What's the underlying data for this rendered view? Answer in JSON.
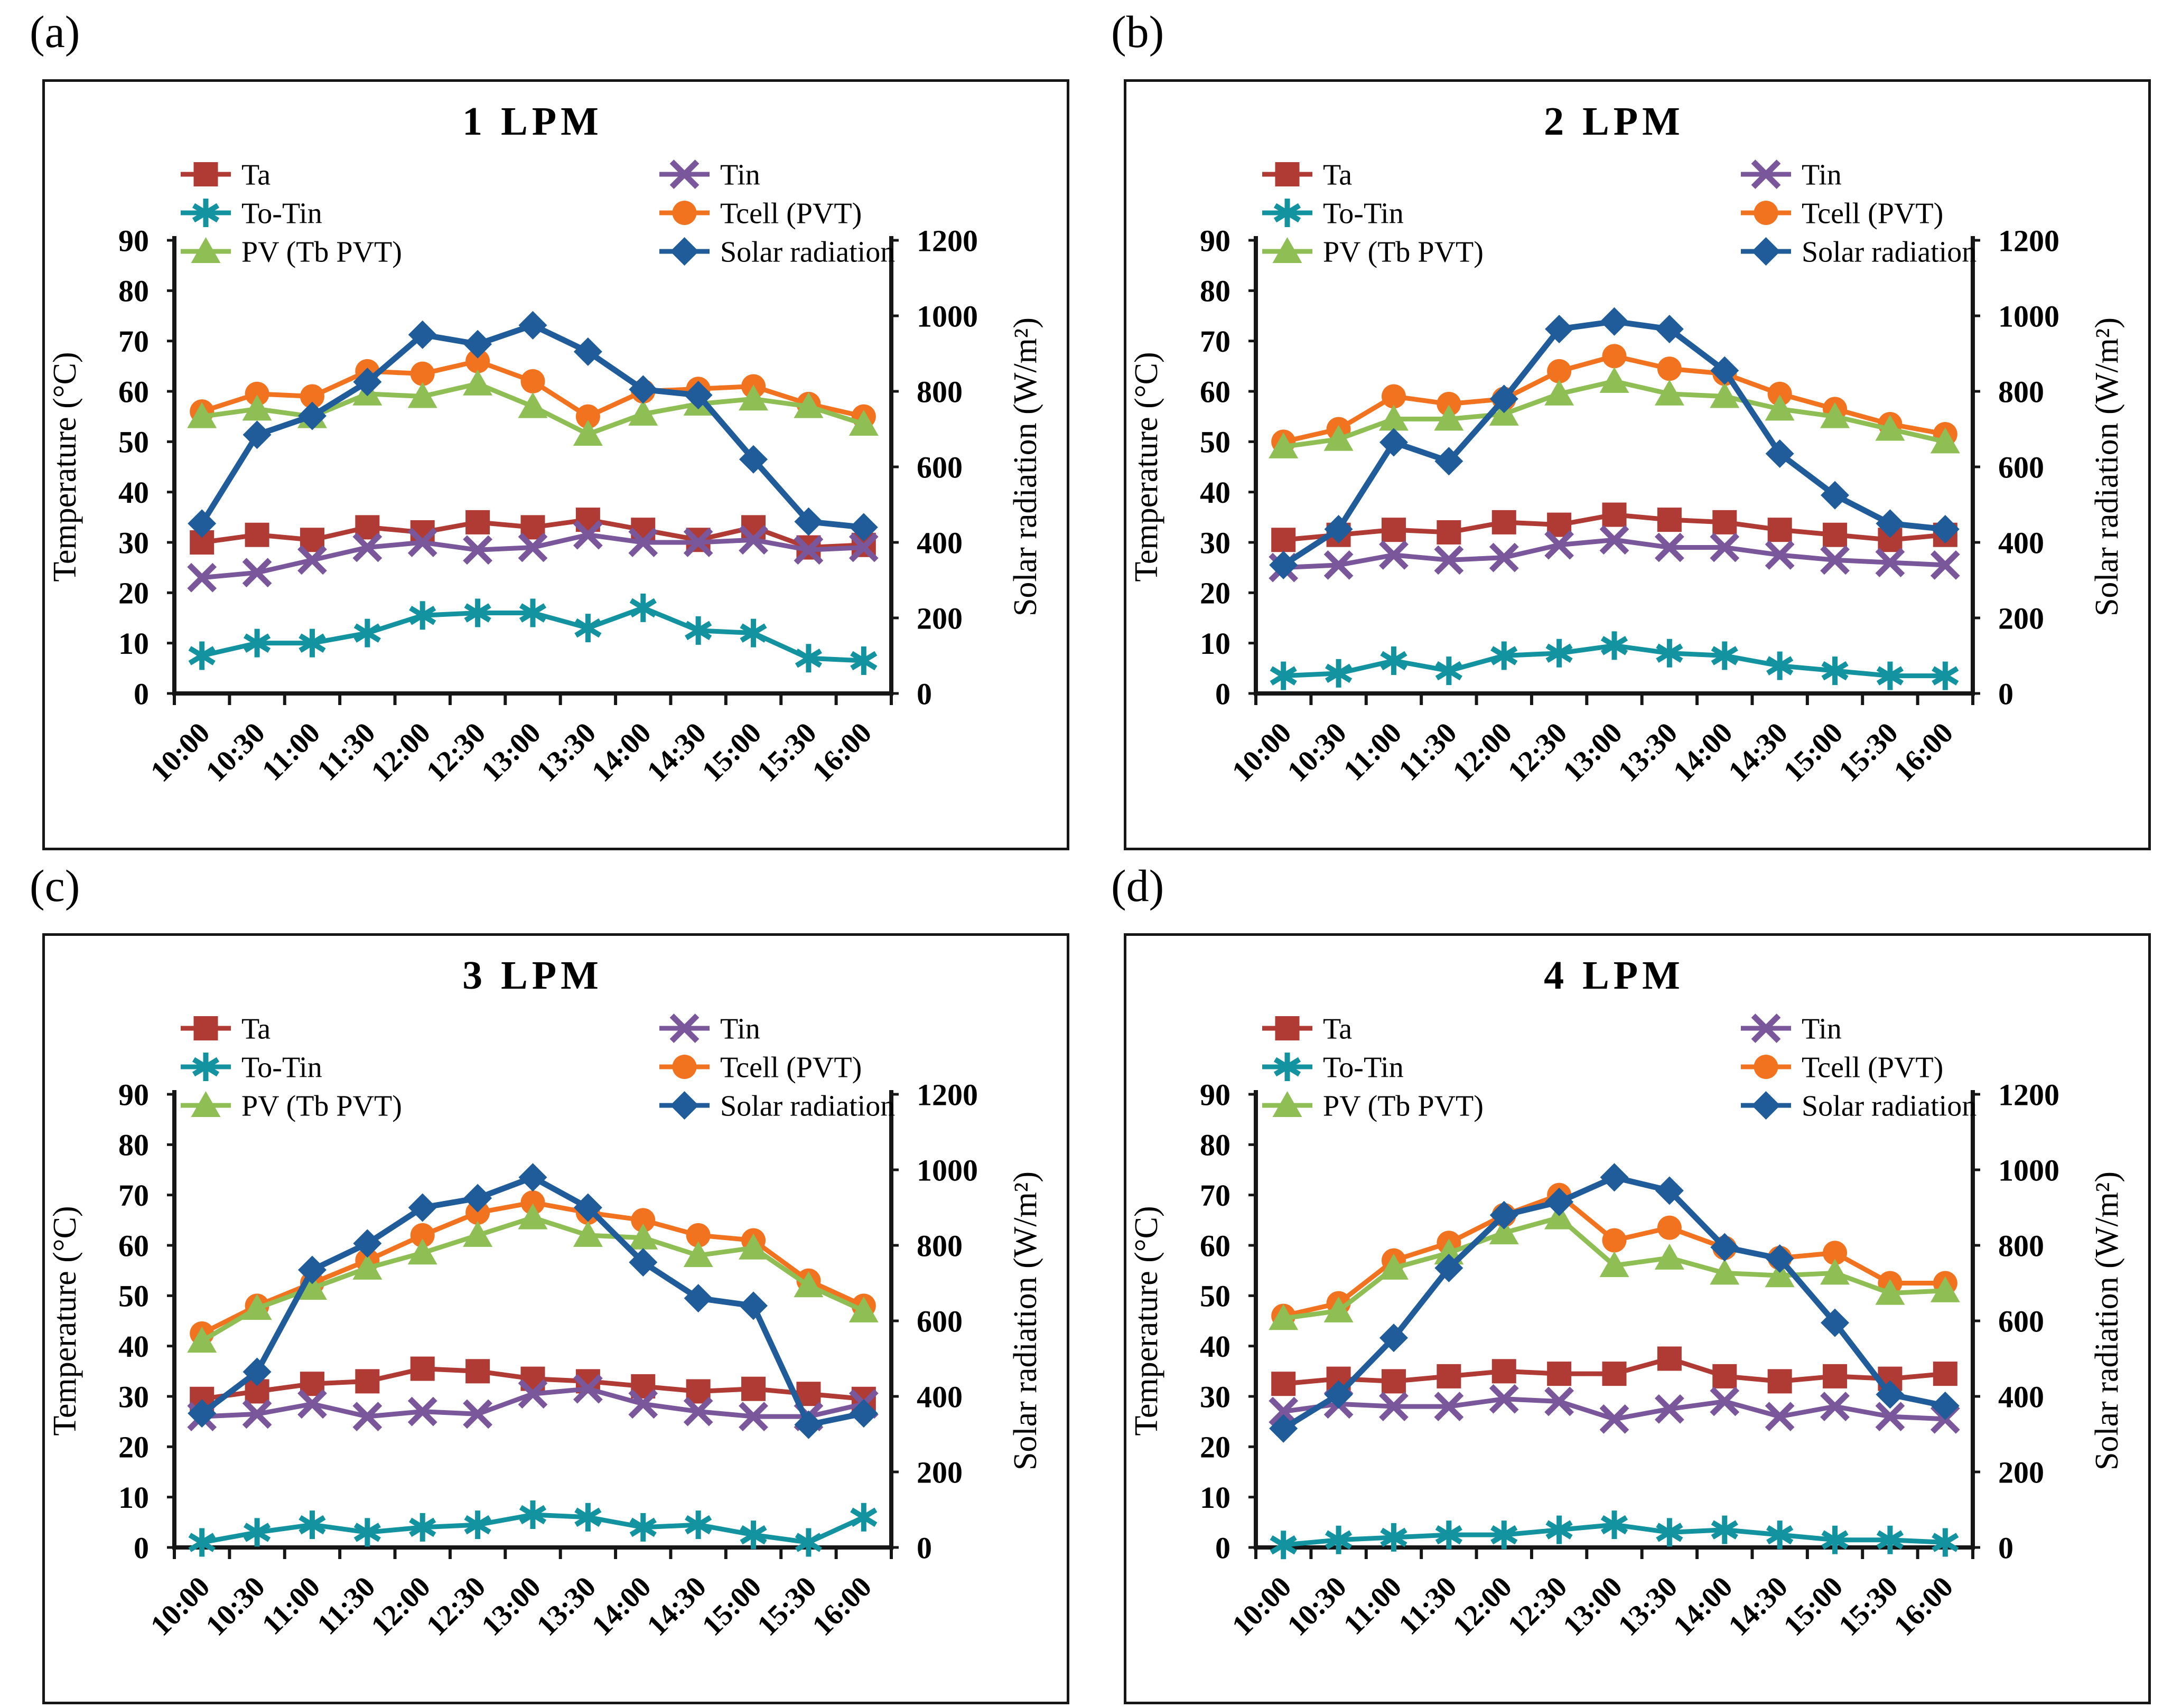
{
  "figure": {
    "background": "#ffffff",
    "text_color": "#000000",
    "box_border_color": "#161616"
  },
  "chart_data": [
    {
      "type": "line",
      "panel_label": "(a)",
      "title": "1 LPM",
      "categories": [
        "10:00",
        "10:30",
        "11:00",
        "11:30",
        "12:00",
        "12:30",
        "13:00",
        "13:30",
        "14:00",
        "14:30",
        "15:00",
        "15:30",
        "16:00"
      ],
      "left_axis": {
        "label": "Temperature (°C)",
        "min": 0,
        "max": 90,
        "step": 10
      },
      "right_axis": {
        "label": "Solar radiation (W/m²)",
        "min": 0,
        "max": 1200,
        "step": 200
      },
      "grid": false,
      "legend_rows": [
        [
          "Ta",
          "Tin"
        ],
        [
          "To-Tin",
          "Tcell (PVT)"
        ],
        [
          "PV (Tb PVT)",
          "Solar radiation"
        ]
      ],
      "series": [
        {
          "name": "Ta",
          "axis": "left",
          "marker": "square",
          "color": "#B03A34",
          "values": [
            30,
            31.5,
            30.5,
            33,
            32,
            34,
            33,
            34.5,
            32.5,
            30.5,
            33,
            29,
            29.5
          ]
        },
        {
          "name": "Tin",
          "axis": "left",
          "marker": "x",
          "color": "#7A569B",
          "values": [
            23,
            24,
            26.5,
            29,
            30,
            28.5,
            29,
            31.5,
            30,
            30,
            30.5,
            28.5,
            29
          ]
        },
        {
          "name": "To-Tin",
          "axis": "left",
          "marker": "asterisk",
          "color": "#13929F",
          "values": [
            7.5,
            10,
            10,
            12,
            15.5,
            16,
            16,
            13,
            17,
            12.5,
            12,
            7,
            6.5
          ]
        },
        {
          "name": "Tcell (PVT)",
          "axis": "left",
          "marker": "circle",
          "color": "#F1731F",
          "values": [
            56,
            59.5,
            59,
            64,
            63.5,
            66,
            62,
            55,
            60,
            60.5,
            61,
            57.5,
            55
          ]
        },
        {
          "name": "PV (Tb PVT)",
          "axis": "left",
          "marker": "triangle",
          "color": "#8FBE55",
          "values": [
            55,
            56.5,
            55,
            59.5,
            59,
            61.5,
            57,
            51.5,
            55.5,
            57.5,
            58.5,
            57,
            53.5
          ]
        },
        {
          "name": "Solar radiation",
          "axis": "right",
          "marker": "diamond",
          "color": "#1F5C99",
          "values": [
            450,
            685,
            735,
            825,
            950,
            925,
            975,
            905,
            805,
            790,
            620,
            455,
            440
          ]
        }
      ]
    },
    {
      "type": "line",
      "panel_label": "(b)",
      "title": "2 LPM",
      "categories": [
        "10:00",
        "10:30",
        "11:00",
        "11:30",
        "12:00",
        "12:30",
        "13:00",
        "13:30",
        "14:00",
        "14:30",
        "15:00",
        "15:30",
        "16:00"
      ],
      "left_axis": {
        "label": "Temperature (°C)",
        "min": 0,
        "max": 90,
        "step": 10
      },
      "right_axis": {
        "label": "Solar radiation (W/m²)",
        "min": 0,
        "max": 1200,
        "step": 200
      },
      "grid": false,
      "legend_rows": [
        [
          "Ta",
          "Tin"
        ],
        [
          "To-Tin",
          "Tcell (PVT)"
        ],
        [
          "PV (Tb PVT)",
          "Solar radiation"
        ]
      ],
      "series": [
        {
          "name": "Ta",
          "axis": "left",
          "marker": "square",
          "color": "#B03A34",
          "values": [
            30.5,
            31.5,
            32.5,
            32,
            34,
            33.5,
            35.5,
            34.5,
            34,
            32.5,
            31.5,
            30.5,
            31.5
          ]
        },
        {
          "name": "Tin",
          "axis": "left",
          "marker": "x",
          "color": "#7A569B",
          "values": [
            25,
            25.5,
            27.5,
            26.5,
            27,
            29.5,
            30.5,
            29,
            29,
            27.5,
            26.5,
            26,
            25.5
          ]
        },
        {
          "name": "To-Tin",
          "axis": "left",
          "marker": "asterisk",
          "color": "#13929F",
          "values": [
            3.5,
            4,
            6.5,
            4.5,
            7.5,
            8,
            9.5,
            8,
            7.5,
            5.5,
            4.5,
            3.5,
            3.5
          ]
        },
        {
          "name": "Tcell (PVT)",
          "axis": "left",
          "marker": "circle",
          "color": "#F1731F",
          "values": [
            50,
            52.5,
            59,
            57.5,
            58.5,
            64,
            67,
            64.5,
            63.5,
            59.5,
            56.5,
            53.5,
            51.5
          ]
        },
        {
          "name": "PV (Tb PVT)",
          "axis": "left",
          "marker": "triangle",
          "color": "#8FBE55",
          "values": [
            49,
            50.5,
            54.5,
            54.5,
            55.5,
            59.5,
            62,
            59.5,
            59,
            56.5,
            55,
            52.5,
            50
          ]
        },
        {
          "name": "Solar radiation",
          "axis": "right",
          "marker": "diamond",
          "color": "#1F5C99",
          "values": [
            340,
            435,
            665,
            615,
            780,
            965,
            985,
            965,
            855,
            635,
            525,
            450,
            435
          ]
        }
      ]
    },
    {
      "type": "line",
      "panel_label": "(c)",
      "title": "3 LPM",
      "categories": [
        "10:00",
        "10:30",
        "11:00",
        "11:30",
        "12:00",
        "12:30",
        "13:00",
        "13:30",
        "14:00",
        "14:30",
        "15:00",
        "15:30",
        "16:00"
      ],
      "left_axis": {
        "label": "Temperature (°C)",
        "min": 0,
        "max": 90,
        "step": 10
      },
      "right_axis": {
        "label": "Solar radiation (W/m²)",
        "min": 0,
        "max": 1200,
        "step": 200
      },
      "grid": false,
      "legend_rows": [
        [
          "Ta",
          "Tin"
        ],
        [
          "To-Tin",
          "Tcell (PVT)"
        ],
        [
          "PV (Tb PVT)",
          "Solar radiation"
        ]
      ],
      "series": [
        {
          "name": "Ta",
          "axis": "left",
          "marker": "square",
          "color": "#B03A34",
          "values": [
            29.5,
            31,
            32.5,
            33,
            35.5,
            35,
            33.5,
            33,
            32,
            31,
            31.5,
            30.5,
            29.5
          ]
        },
        {
          "name": "Tin",
          "axis": "left",
          "marker": "x",
          "color": "#7A569B",
          "values": [
            26,
            26.5,
            28.5,
            26,
            27,
            26.5,
            30.5,
            31.5,
            28.5,
            27,
            26,
            26,
            28.5
          ]
        },
        {
          "name": "To-Tin",
          "axis": "left",
          "marker": "asterisk",
          "color": "#13929F",
          "values": [
            1,
            3,
            4.5,
            3,
            4,
            4.5,
            6.5,
            6,
            4,
            4.5,
            2.5,
            1,
            6
          ]
        },
        {
          "name": "Tcell (PVT)",
          "axis": "left",
          "marker": "circle",
          "color": "#F1731F",
          "values": [
            42.5,
            48,
            52.5,
            57,
            62,
            66.5,
            68.5,
            66.5,
            65,
            62,
            61,
            53,
            48
          ]
        },
        {
          "name": "PV (Tb PVT)",
          "axis": "left",
          "marker": "triangle",
          "color": "#8FBE55",
          "values": [
            41,
            47.5,
            51.5,
            55.5,
            58.5,
            62,
            65.5,
            62,
            61.5,
            58,
            59.5,
            52,
            47
          ]
        },
        {
          "name": "Solar radiation",
          "axis": "right",
          "marker": "diamond",
          "color": "#1F5C99",
          "values": [
            355,
            465,
            735,
            805,
            900,
            925,
            980,
            900,
            755,
            660,
            640,
            325,
            355
          ]
        }
      ]
    },
    {
      "type": "line",
      "panel_label": "(d)",
      "title": "4 LPM",
      "categories": [
        "10:00",
        "10:30",
        "11:00",
        "11:30",
        "12:00",
        "12:30",
        "13:00",
        "13:30",
        "14:00",
        "14:30",
        "15:00",
        "15:30",
        "16:00"
      ],
      "left_axis": {
        "label": "Temperature (°C)",
        "min": 0,
        "max": 90,
        "step": 10
      },
      "right_axis": {
        "label": "Solar radiation (W/m²)",
        "min": 0,
        "max": 1200,
        "step": 200
      },
      "grid": false,
      "legend_rows": [
        [
          "Ta",
          "Tin"
        ],
        [
          "To-Tin",
          "Tcell (PVT)"
        ],
        [
          "PV (Tb PVT)",
          "Solar radiation"
        ]
      ],
      "series": [
        {
          "name": "Ta",
          "axis": "left",
          "marker": "square",
          "color": "#B03A34",
          "values": [
            32.5,
            33.5,
            33,
            34,
            35,
            34.5,
            34.5,
            37.5,
            34,
            33,
            34,
            33.5,
            34.5
          ]
        },
        {
          "name": "Tin",
          "axis": "left",
          "marker": "x",
          "color": "#7A569B",
          "values": [
            27,
            28.5,
            28,
            28,
            29.5,
            29,
            25.5,
            27.5,
            29,
            26,
            28,
            26,
            25.5
          ]
        },
        {
          "name": "To-Tin",
          "axis": "left",
          "marker": "asterisk",
          "color": "#13929F",
          "values": [
            0.5,
            1.5,
            2,
            2.5,
            2.5,
            3.5,
            4.5,
            3,
            3.5,
            2.5,
            1.5,
            1.5,
            1
          ]
        },
        {
          "name": "Tcell (PVT)",
          "axis": "left",
          "marker": "circle",
          "color": "#F1731F",
          "values": [
            46,
            48.5,
            57,
            60.5,
            66,
            70,
            61,
            63.5,
            59.5,
            57.5,
            58.5,
            52.5,
            52.5
          ]
        },
        {
          "name": "PV (Tb PVT)",
          "axis": "left",
          "marker": "triangle",
          "color": "#8FBE55",
          "values": [
            45.5,
            47,
            55.5,
            58.5,
            62.5,
            65.5,
            56,
            57.5,
            54.5,
            54,
            54.5,
            50.5,
            51
          ]
        },
        {
          "name": "Solar radiation",
          "axis": "right",
          "marker": "diamond",
          "color": "#1F5C99",
          "values": [
            315,
            405,
            555,
            740,
            880,
            915,
            980,
            945,
            795,
            765,
            595,
            405,
            375
          ]
        }
      ]
    }
  ]
}
